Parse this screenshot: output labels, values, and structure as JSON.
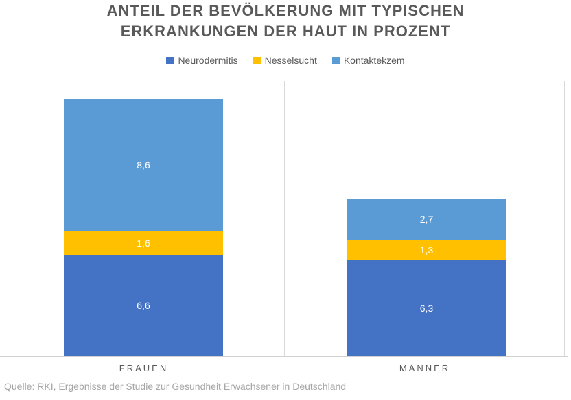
{
  "source": "Quelle: RKI, Ergebnisse der Studie zur Gesundheit Erwachsener in Deutschland",
  "chart_data": {
    "type": "bar",
    "stacked": true,
    "title": "ANTEIL DER BEVÖLKERUNG MIT TYPISCHEN ERKRANKUNGEN DER HAUT IN PROZENT",
    "categories": [
      "FRAUEN",
      "MÄNNER"
    ],
    "series": [
      {
        "name": "Neurodermitis",
        "color": "#4472C4",
        "values": [
          6.6,
          6.3
        ],
        "labels": [
          "6,6",
          "6,3"
        ]
      },
      {
        "name": "Nesselsucht",
        "color": "#FFC000",
        "values": [
          1.6,
          1.3
        ],
        "labels": [
          "1,6",
          "1,3"
        ]
      },
      {
        "name": "Kontaktekzem",
        "color": "#5B9BD5",
        "values": [
          8.6,
          2.7
        ],
        "labels": [
          "8,6",
          "2,7"
        ]
      }
    ],
    "totals": [
      16.8,
      10.3
    ],
    "value_label_color": "#FFFFFF",
    "legend_position": "top",
    "xlabel": "",
    "ylabel": "",
    "y_axis_visible": false,
    "gridlines_visible": false,
    "axis_line_color": "#D9D9D9",
    "title_color": "#595959",
    "unit": "percent"
  }
}
